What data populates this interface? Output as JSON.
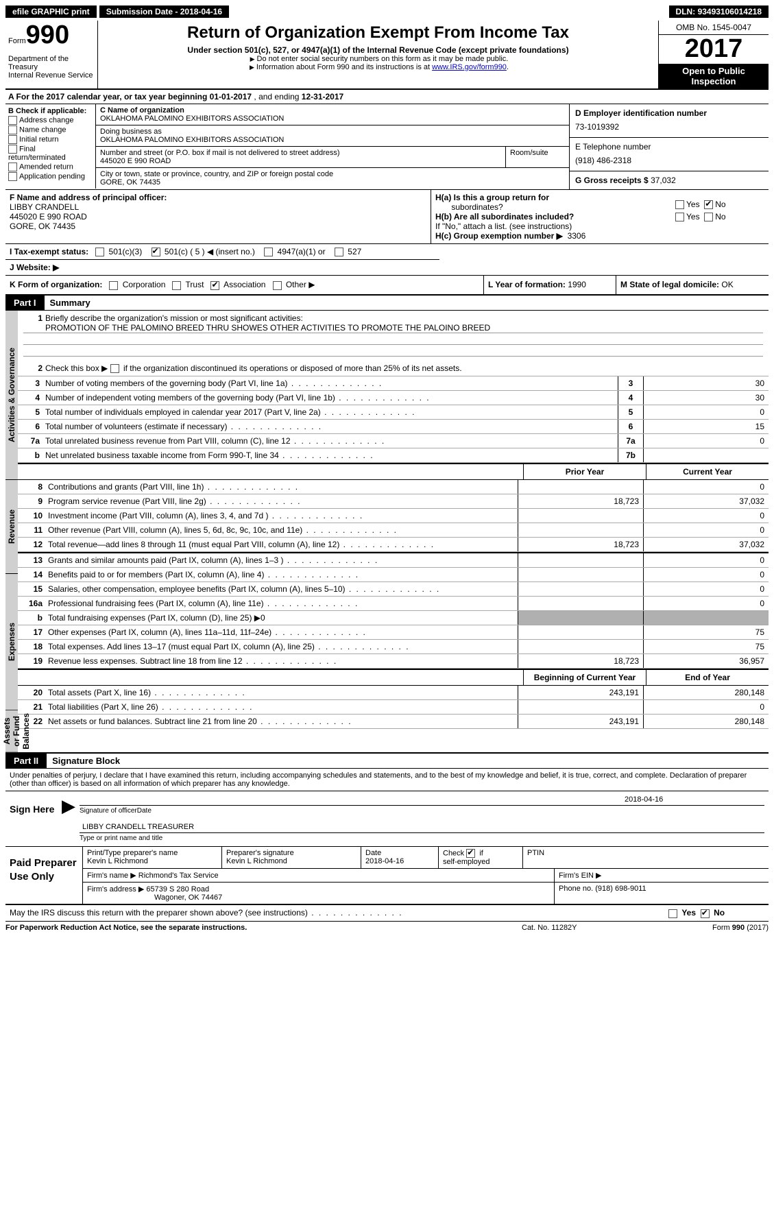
{
  "top": {
    "efile": "efile GRAPHIC print",
    "submission_label": "Submission Date -",
    "submission_date": "2018-04-16",
    "dln_label": "DLN:",
    "dln": "93493106014218"
  },
  "header": {
    "form_word": "Form",
    "form_number": "990",
    "dept1": "Department of the Treasury",
    "dept2": "Internal Revenue Service",
    "title": "Return of Organization Exempt From Income Tax",
    "subtitle": "Under section 501(c), 527, or 4947(a)(1) of the Internal Revenue Code (except private foundations)",
    "note1": "Do not enter social security numbers on this form as it may be made public.",
    "note2_pre": "Information about Form 990 and its instructions is at ",
    "note2_link": "www.IRS.gov/form990",
    "omb": "OMB No. 1545-0047",
    "year": "2017",
    "inspect1": "Open to Public",
    "inspect2": "Inspection"
  },
  "sectionA": {
    "prefix": "A  For the 2017 calendar year, or tax year beginning ",
    "begin": "01-01-2017",
    "mid": "  , and ending ",
    "end": "12-31-2017"
  },
  "colB": {
    "label": "B Check if applicable:",
    "items": [
      "Address change",
      "Name change",
      "Initial return",
      "Final return/terminated",
      "Amended return",
      "Application pending"
    ]
  },
  "colC": {
    "name_label": "C Name of organization",
    "name": "OKLAHOMA PALOMINO EXHIBITORS ASSOCIATION",
    "dba_label": "Doing business as",
    "dba": "OKLAHOMA PALOMINO EXHIBITORS ASSOCIATION",
    "street_label": "Number and street (or P.O. box if mail is not delivered to street address)",
    "street": "445020 E 990 ROAD",
    "room_label": "Room/suite",
    "city_label": "City or town, state or province, country, and ZIP or foreign postal code",
    "city": "GORE, OK  74435"
  },
  "colD": {
    "ein_label": "D Employer identification number",
    "ein": "73-1019392",
    "phone_label": "E Telephone number",
    "phone": "(918) 486-2318",
    "gross_label": "G Gross receipts $",
    "gross": "37,032"
  },
  "officer": {
    "label": "F  Name and address of principal officer:",
    "name": "LIBBY CRANDELL",
    "street": "445020 E 990 ROAD",
    "city": "GORE, OK  74435"
  },
  "h": {
    "a_label": "H(a)  Is this a group return for",
    "a_sub": "subordinates?",
    "a_no_checked": true,
    "b_label": "H(b)  Are all subordinates included?",
    "b_note": "If \"No,\" attach a list. (see instructions)",
    "c_label": "H(c)  Group exemption number ▶",
    "c_val": "3306",
    "yes": "Yes",
    "no": "No"
  },
  "status": {
    "label": "I  Tax-exempt status:",
    "opt1": "501(c)(3)",
    "opt2_pre": "501(c) (",
    "opt2_val": "5",
    "opt2_post": ") ◀ (insert no.)",
    "opt3": "4947(a)(1) or",
    "opt4": "527"
  },
  "website": {
    "label": "J  Website: ▶"
  },
  "k": {
    "label": "K Form of organization:",
    "opts": [
      "Corporation",
      "Trust",
      "Association",
      "Other ▶"
    ],
    "checked_index": 2,
    "L_label": "L Year of formation:",
    "L_val": "1990",
    "M_label": "M State of legal domicile:",
    "M_val": "OK"
  },
  "parts": {
    "p1_label": "Part I",
    "p1_title": "Summary",
    "p2_label": "Part II",
    "p2_title": "Signature Block"
  },
  "vtabs": {
    "gov": "Activities & Governance",
    "rev": "Revenue",
    "exp": "Expenses",
    "net": "Net Assets or Fund Balances"
  },
  "gov": {
    "l1_label": "Briefly describe the organization's mission or most significant activities:",
    "l1_text": "PROMOTION OF THE PALOMINO BREED THRU SHOWES OTHER ACTIVITIES TO PROMOTE THE PALOINO BREED",
    "l2": "Check this box ▶",
    "l2b": "if the organization discontinued its operations or disposed of more than 25% of its net assets.",
    "rows": [
      {
        "n": "3",
        "d": "Number of voting members of the governing body (Part VI, line 1a)",
        "r": "3",
        "v": "30"
      },
      {
        "n": "4",
        "d": "Number of independent voting members of the governing body (Part VI, line 1b)",
        "r": "4",
        "v": "30"
      },
      {
        "n": "5",
        "d": "Total number of individuals employed in calendar year 2017 (Part V, line 2a)",
        "r": "5",
        "v": "0"
      },
      {
        "n": "6",
        "d": "Total number of volunteers (estimate if necessary)",
        "r": "6",
        "v": "15"
      },
      {
        "n": "7a",
        "d": "Total unrelated business revenue from Part VIII, column (C), line 12",
        "r": "7a",
        "v": "0"
      },
      {
        "n": "b",
        "d": "Net unrelated business taxable income from Form 990-T, line 34",
        "r": "7b",
        "v": ""
      }
    ]
  },
  "cols": {
    "prior": "Prior Year",
    "current": "Current Year",
    "boc": "Beginning of Current Year",
    "eoy": "End of Year"
  },
  "rev": [
    {
      "n": "8",
      "d": "Contributions and grants (Part VIII, line 1h)",
      "c1": "",
      "c2": "0"
    },
    {
      "n": "9",
      "d": "Program service revenue (Part VIII, line 2g)",
      "c1": "18,723",
      "c2": "37,032"
    },
    {
      "n": "10",
      "d": "Investment income (Part VIII, column (A), lines 3, 4, and 7d )",
      "c1": "",
      "c2": "0"
    },
    {
      "n": "11",
      "d": "Other revenue (Part VIII, column (A), lines 5, 6d, 8c, 9c, 10c, and 11e)",
      "c1": "",
      "c2": "0"
    },
    {
      "n": "12",
      "d": "Total revenue—add lines 8 through 11 (must equal Part VIII, column (A), line 12)",
      "c1": "18,723",
      "c2": "37,032"
    }
  ],
  "exp": [
    {
      "n": "13",
      "d": "Grants and similar amounts paid (Part IX, column (A), lines 1–3 )",
      "c1": "",
      "c2": "0"
    },
    {
      "n": "14",
      "d": "Benefits paid to or for members (Part IX, column (A), line 4)",
      "c1": "",
      "c2": "0"
    },
    {
      "n": "15",
      "d": "Salaries, other compensation, employee benefits (Part IX, column (A), lines 5–10)",
      "c1": "",
      "c2": "0"
    },
    {
      "n": "16a",
      "d": "Professional fundraising fees (Part IX, column (A), line 11e)",
      "c1": "",
      "c2": "0"
    },
    {
      "n": "b",
      "d": "Total fundraising expenses (Part IX, column (D), line 25) ▶0",
      "shade": true
    },
    {
      "n": "17",
      "d": "Other expenses (Part IX, column (A), lines 11a–11d, 11f–24e)",
      "c1": "",
      "c2": "75"
    },
    {
      "n": "18",
      "d": "Total expenses. Add lines 13–17 (must equal Part IX, column (A), line 25)",
      "c1": "",
      "c2": "75"
    },
    {
      "n": "19",
      "d": "Revenue less expenses. Subtract line 18 from line 12",
      "c1": "18,723",
      "c2": "36,957"
    }
  ],
  "net": [
    {
      "n": "20",
      "d": "Total assets (Part X, line 16)",
      "c1": "243,191",
      "c2": "280,148"
    },
    {
      "n": "21",
      "d": "Total liabilities (Part X, line 26)",
      "c1": "",
      "c2": "0"
    },
    {
      "n": "22",
      "d": "Net assets or fund balances. Subtract line 21 from line 20",
      "c1": "243,191",
      "c2": "280,148"
    }
  ],
  "sig": {
    "decl": "Under penalties of perjury, I declare that I have examined this return, including accompanying schedules and statements, and to the best of my knowledge and belief, it is true, correct, and complete. Declaration of preparer (other than officer) is based on all information of which preparer has any knowledge.",
    "sign_here": "Sign Here",
    "sig_of_officer": "Signature of officer",
    "sig_date_val": "2018-04-16",
    "date": "Date",
    "officer_name": "LIBBY CRANDELL TREASURER",
    "type_name": "Type or print name and title"
  },
  "preparer": {
    "label": "Paid Preparer Use Only",
    "name_label": "Print/Type preparer's name",
    "name": "Kevin L Richmond",
    "sig_label": "Preparer's signature",
    "sig": "Kevin L Richmond",
    "date_label": "Date",
    "date": "2018-04-16",
    "check_label": "Check",
    "check_suffix": "if",
    "self_emp": "self-employed",
    "ptin": "PTIN",
    "firm_name_label": "Firm's name    ▶",
    "firm_name": "Richmond's Tax Service",
    "firm_ein_label": "Firm's EIN ▶",
    "firm_addr_label": "Firm's address ▶",
    "firm_addr1": "65739 S 280 Road",
    "firm_addr2": "Wagoner, OK  74467",
    "phone_label": "Phone no.",
    "phone": "(918) 698-9011"
  },
  "discuss": {
    "text": "May the IRS discuss this return with the preparer shown above? (see instructions)",
    "yes": "Yes",
    "no": "No"
  },
  "footer": {
    "left": "For Paperwork Reduction Act Notice, see the separate instructions.",
    "mid": "Cat. No. 11282Y",
    "right_pre": "Form ",
    "right_form": "990",
    "right_post": " (2017)"
  }
}
